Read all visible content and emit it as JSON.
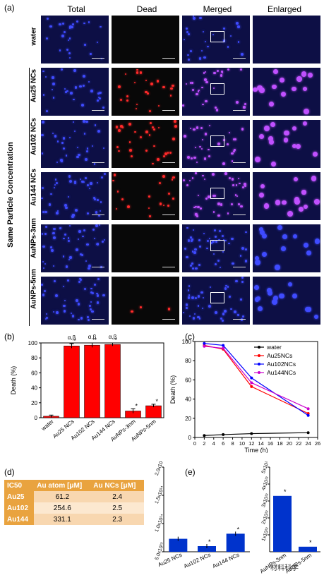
{
  "panel_a": {
    "label": "(a)",
    "columns": [
      "Total",
      "Dead",
      "Merged",
      "Enlarged"
    ],
    "rows": [
      "water",
      "Au25 NCs",
      "Au102 NCs",
      "Au144 NCs",
      "AuNPs-3nm",
      "AuNPs-5nm"
    ],
    "side_label": "Same Particle Concentration",
    "colors": {
      "total": "#3f4bff",
      "dead": "#ff2a2a",
      "merged": "#c050ff",
      "background": "#0d0f45"
    }
  },
  "chart_data": [
    {
      "panel": "(b)",
      "type": "bar",
      "ylabel": "Death (%)",
      "ylim": [
        0,
        100
      ],
      "yticks": [
        "0",
        "20",
        "40",
        "60",
        "80",
        "100"
      ],
      "categories": [
        "water",
        "Au25 NCs",
        "Au102 NCs",
        "Au144 NCs",
        "AuNPs-3nm",
        "AuNPs-5nm"
      ],
      "values": [
        2,
        96,
        97,
        98,
        9,
        16
      ],
      "errors": [
        1.5,
        3,
        3,
        2,
        3,
        2
      ],
      "annotations": [
        "",
        "α,β",
        "α,β",
        "α,β",
        "",
        ""
      ],
      "stars": [
        "",
        "*",
        "*",
        "*",
        "*",
        "*"
      ],
      "bar_color": "#ff0000"
    },
    {
      "panel": "(c)",
      "type": "line",
      "xlabel": "Time (h)",
      "ylabel": "Death (%)",
      "xlim": [
        0,
        26
      ],
      "ylim": [
        0,
        100
      ],
      "xticks": [
        "0",
        "2",
        "4",
        "6",
        "8",
        "10",
        "12",
        "14",
        "16",
        "18",
        "20",
        "22",
        "24",
        "26"
      ],
      "yticks": [
        "0",
        "20",
        "40",
        "60",
        "80",
        "100"
      ],
      "x": [
        2,
        6,
        12,
        24
      ],
      "series": [
        {
          "name": "water",
          "color": "#000000",
          "values": [
            2,
            3,
            4,
            5
          ]
        },
        {
          "name": "Au25NCs",
          "color": "#ff0000",
          "values": [
            96,
            92,
            53,
            25
          ]
        },
        {
          "name": "Au102NCs",
          "color": "#0000ff",
          "values": [
            98,
            96,
            62,
            23
          ]
        },
        {
          "name": "Au144NCs",
          "color": "#cc00cc",
          "values": [
            95,
            93,
            57,
            30
          ]
        }
      ]
    },
    {
      "panel": "(e)",
      "type": "bar",
      "ylabel": "Uptake of Au",
      "ylabel2": "(Au particle/mg DWC)",
      "yticks": [
        "5.0x10¹³",
        "1.0x10¹⁴",
        "1.5x10¹⁴",
        "2.0x10¹⁴"
      ],
      "ylim": [
        50000000000000.0,
        200000000000000.0
      ],
      "categories": [
        "Au25 NCs",
        "Au102 NCs",
        "Au144 NCs"
      ],
      "values": [
        73000000000000.0,
        60000000000000.0,
        82000000000000.0
      ],
      "stars": [
        "",
        "*",
        "*"
      ],
      "bar_color": "#0033cc"
    },
    {
      "panel": "(e-right)",
      "type": "bar",
      "yticks": [
        "1x10¹³",
        "2x10¹³",
        "3x10¹³",
        "4x10¹³",
        "5x10¹³"
      ],
      "ylim": [
        0,
        50000000000000.0
      ],
      "categories": [
        "AuNPs-3nm",
        "AuNPs-5nm"
      ],
      "values": [
        33000000000000.0,
        3000000000000.0
      ],
      "stars": [
        "*",
        "*"
      ],
      "bar_color": "#0033cc"
    }
  ],
  "panel_d": {
    "label": "(d)",
    "headers": [
      "IC50",
      "Au atom [μM]",
      "Au NCs [μM]"
    ],
    "rows": [
      [
        "Au25",
        "61.2",
        "2.4"
      ],
      [
        "Au102",
        "254.6",
        "2.5"
      ],
      [
        "Au144",
        "331.1",
        "2.3"
      ]
    ],
    "colors": {
      "header": "#e9a33f",
      "rowlabel": "#e9a33f",
      "row1": "#f8d7b0",
      "row2": "#fce8d0"
    }
  },
  "watermark": "材料科学"
}
